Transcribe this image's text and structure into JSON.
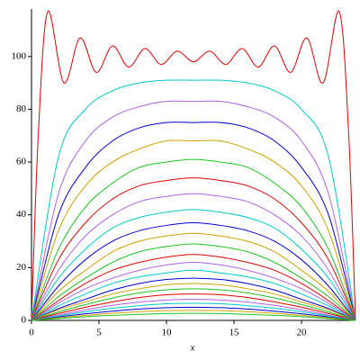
{
  "chart_data": {
    "type": "line",
    "xlabel": "x",
    "x": [
      0,
      2,
      4,
      6,
      8,
      10,
      12,
      14,
      16,
      18,
      20,
      22,
      24
    ],
    "xlim": [
      0,
      24
    ],
    "ylim": [
      0,
      118
    ],
    "xticks": [
      0,
      5,
      10,
      15,
      20
    ],
    "yticks": [
      0,
      20,
      40,
      60,
      80,
      100
    ],
    "series": [
      {
        "color": "#e00000",
        "x": [
          0,
          0.5,
          1.2,
          2.4,
          3.6,
          4.8,
          6.0,
          7.2,
          8.4,
          9.6,
          10.8,
          12,
          13.2,
          14.4,
          15.6,
          16.8,
          18,
          19.2,
          20.4,
          21.6,
          22.8,
          23.5,
          24
        ],
        "values": [
          0,
          70,
          117,
          90,
          107,
          94,
          104,
          96,
          103,
          97,
          102,
          98,
          102,
          97,
          103,
          96,
          104,
          94,
          107,
          90,
          117,
          70,
          0
        ]
      },
      {
        "color": "#00c8c8",
        "values": [
          0,
          62,
          80,
          87,
          90,
          91,
          91,
          91,
          90,
          87,
          80,
          62,
          0
        ]
      },
      {
        "color": "#b060e0",
        "values": [
          0,
          48,
          68,
          77,
          81,
          83,
          83,
          83,
          81,
          77,
          68,
          48,
          0
        ]
      },
      {
        "color": "#0000cc",
        "values": [
          0,
          40,
          58,
          68,
          73,
          75,
          75,
          75,
          73,
          68,
          58,
          40,
          0
        ]
      },
      {
        "color": "#d0a000",
        "values": [
          0,
          34,
          51,
          60,
          65,
          68,
          68,
          68,
          65,
          60,
          51,
          34,
          0
        ]
      },
      {
        "color": "#20c020",
        "values": [
          0,
          27,
          43,
          52,
          58,
          60,
          61,
          60,
          58,
          52,
          43,
          27,
          0
        ]
      },
      {
        "color": "#e00000",
        "values": [
          0,
          23,
          37,
          46,
          51,
          53,
          54,
          53,
          51,
          46,
          37,
          23,
          0
        ]
      },
      {
        "color": "#b060e0",
        "values": [
          0,
          19,
          32,
          40,
          45,
          47,
          48,
          47,
          45,
          40,
          32,
          19,
          0
        ]
      },
      {
        "color": "#00c8c8",
        "values": [
          0,
          16,
          27,
          35,
          39,
          41,
          42,
          41,
          39,
          35,
          27,
          16,
          0
        ]
      },
      {
        "color": "#0000cc",
        "values": [
          0,
          13,
          23,
          30,
          34,
          36,
          37,
          36,
          34,
          30,
          23,
          13,
          0
        ]
      },
      {
        "color": "#d0a000",
        "values": [
          0,
          11,
          19,
          26,
          30,
          32,
          33,
          32,
          30,
          26,
          19,
          11,
          0
        ]
      },
      {
        "color": "#20c020",
        "values": [
          0,
          9,
          16,
          22,
          26,
          28,
          29,
          28,
          26,
          22,
          16,
          9,
          0
        ]
      },
      {
        "color": "#e00000",
        "values": [
          0,
          7.5,
          14,
          19,
          22,
          24,
          25,
          24,
          22,
          19,
          14,
          7.5,
          0
        ]
      },
      {
        "color": "#b060e0",
        "values": [
          0,
          6.5,
          12,
          16,
          19,
          21,
          22,
          21,
          19,
          16,
          12,
          6.5,
          0
        ]
      },
      {
        "color": "#00c8c8",
        "values": [
          0,
          5.5,
          10,
          14,
          16.5,
          18,
          19,
          18,
          16.5,
          14,
          10,
          5.5,
          0
        ]
      },
      {
        "color": "#0000cc",
        "values": [
          0,
          4.5,
          8,
          11.5,
          14,
          15.5,
          16,
          15.5,
          14,
          11.5,
          8,
          4.5,
          0
        ]
      },
      {
        "color": "#d0a000",
        "values": [
          0,
          4,
          7,
          10,
          12,
          13.5,
          14,
          13.5,
          12,
          10,
          7,
          4,
          0
        ]
      },
      {
        "color": "#20c020",
        "values": [
          0,
          3.2,
          6,
          8.5,
          10.4,
          11.6,
          12,
          11.6,
          10.4,
          8.5,
          6,
          3.2,
          0
        ]
      },
      {
        "color": "#e00000",
        "values": [
          0,
          2.6,
          5,
          7,
          8.7,
          9.7,
          10,
          9.7,
          8.7,
          7,
          5,
          2.6,
          0
        ]
      },
      {
        "color": "#b060e0",
        "values": [
          0,
          2,
          4,
          5.7,
          6.9,
          7.7,
          8,
          7.7,
          6.9,
          5.7,
          4,
          2,
          0
        ]
      },
      {
        "color": "#00c8c8",
        "values": [
          0,
          1.7,
          3.3,
          4.6,
          5.6,
          6.3,
          6.5,
          6.3,
          5.6,
          4.6,
          3.3,
          1.7,
          0
        ]
      },
      {
        "color": "#0000cc",
        "values": [
          0,
          1.3,
          2.5,
          3.5,
          4.3,
          4.8,
          5,
          4.8,
          4.3,
          3.5,
          2.5,
          1.3,
          0
        ]
      },
      {
        "color": "#d0a000",
        "values": [
          0,
          1,
          1.9,
          2.7,
          3.3,
          3.7,
          3.8,
          3.7,
          3.3,
          2.7,
          1.9,
          1,
          0
        ]
      },
      {
        "color": "#20c020",
        "values": [
          0,
          0.7,
          1.4,
          1.9,
          2.3,
          2.6,
          2.7,
          2.6,
          2.3,
          1.9,
          1.4,
          0.7,
          0
        ]
      }
    ]
  }
}
